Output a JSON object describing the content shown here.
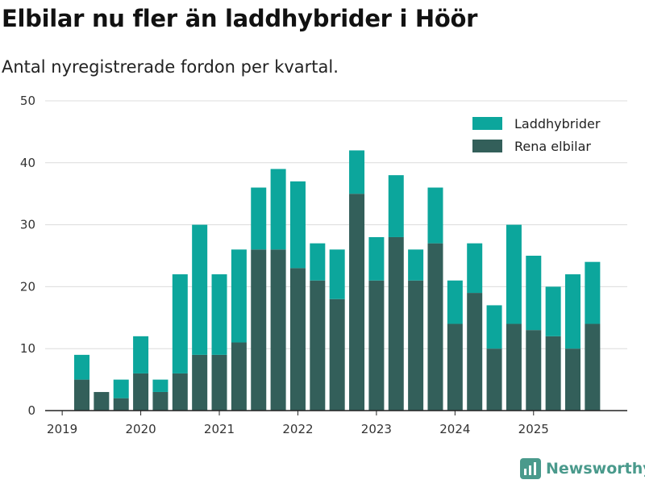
{
  "title": "Elbilar nu fler än laddhybrider i Höör",
  "subtitle": "Antal nyregistrerade fordon per kvartal.",
  "brand": {
    "name": "Newsworthy",
    "icon": "newsworthy-logo-icon"
  },
  "colors": {
    "laddhybrider": "#0ca69c",
    "rena_elbilar": "#335f5a",
    "grid": "#dcdcdc",
    "brand": "#4a9a8c"
  },
  "chart_data": {
    "type": "bar",
    "stacked": true,
    "title": "Elbilar nu fler än laddhybrider i Höör",
    "subtitle": "Antal nyregistrerade fordon per kvartal.",
    "xlabel": "",
    "ylabel": "",
    "ylim": [
      0,
      50
    ],
    "yticks": [
      0,
      10,
      20,
      30,
      40,
      50
    ],
    "xtick_labels": [
      "2019",
      "2020",
      "2021",
      "2022",
      "2023",
      "2024",
      "2025"
    ],
    "categories": [
      "2019 Q2",
      "2019 Q3",
      "2019 Q4",
      "2020 Q1",
      "2020 Q2",
      "2020 Q3",
      "2020 Q4",
      "2021 Q1",
      "2021 Q2",
      "2021 Q3",
      "2021 Q4",
      "2022 Q1",
      "2022 Q2",
      "2022 Q3",
      "2022 Q4",
      "2023 Q1",
      "2023 Q2",
      "2023 Q3",
      "2023 Q4",
      "2024 Q1",
      "2024 Q2",
      "2024 Q3",
      "2024 Q4",
      "2025 Q1",
      "2025 Q2",
      "2025 Q3",
      "2025 Q4"
    ],
    "legend_position": "top-right",
    "grid": true,
    "series": [
      {
        "name": "Rena elbilar",
        "values": [
          5,
          3,
          2,
          6,
          3,
          6,
          9,
          9,
          11,
          26,
          26,
          23,
          21,
          18,
          35,
          21,
          28,
          21,
          27,
          14,
          19,
          10,
          14,
          13,
          12,
          10,
          14
        ]
      },
      {
        "name": "Laddhybrider",
        "values": [
          4,
          0,
          3,
          6,
          2,
          16,
          21,
          13,
          15,
          10,
          13,
          14,
          6,
          8,
          7,
          7,
          10,
          5,
          9,
          7,
          8,
          7,
          16,
          12,
          8,
          12,
          10
        ]
      }
    ],
    "legend": [
      "Laddhybrider",
      "Rena elbilar"
    ]
  }
}
